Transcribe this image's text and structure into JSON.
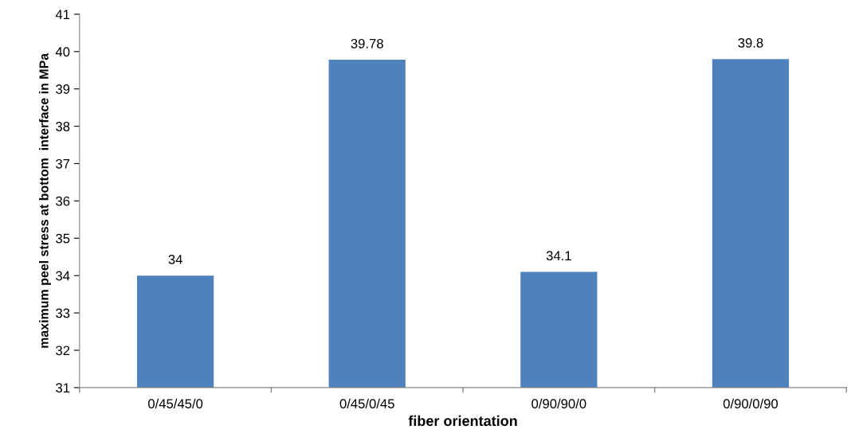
{
  "chart_data": {
    "type": "bar",
    "xlabel": "fiber orientation",
    "ylabel": "maximum peel stress at bottom  interface in MPa",
    "categories": [
      "0/45/45/0",
      "0/45/0/45",
      "0/90/90/0",
      "0/90/0/90"
    ],
    "values": [
      34,
      39.78,
      34.1,
      39.8
    ],
    "value_labels": [
      "34",
      "39.78",
      "34.1",
      "39.8"
    ],
    "color": "#4f81bd",
    "ylim": [
      31,
      41
    ],
    "yticks": [
      31,
      32,
      33,
      34,
      35,
      36,
      37,
      38,
      39,
      40,
      41
    ],
    "grid": false
  }
}
